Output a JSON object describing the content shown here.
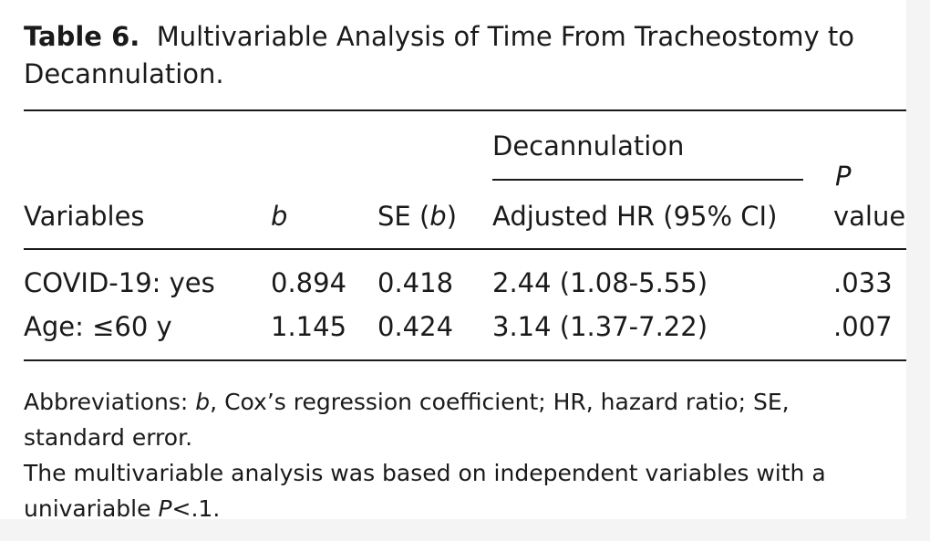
{
  "caption": {
    "label": "Table 6.",
    "title": "Multivariable Analysis of Time From Tracheostomy to Decannulation."
  },
  "table": {
    "headers": {
      "variables": "Variables",
      "b": "b",
      "se_prefix": "SE (",
      "se_var": "b",
      "se_suffix": ")",
      "spanner": "Decannulation",
      "adjusted_hr": "Adjusted HR (95% CI)",
      "p_letter": "P",
      "p_word": "value"
    },
    "rows": [
      {
        "variable": "COVID-19: yes",
        "b": "0.894",
        "se": "0.418",
        "hr": "2.44 (1.08-5.55)",
        "p": ".033"
      },
      {
        "variable": "Age: ≤60 y",
        "b": "1.145",
        "se": "0.424",
        "hr": "3.14 (1.37-7.22)",
        "p": ".007"
      }
    ]
  },
  "notes": {
    "abbr_prefix": "Abbreviations: ",
    "abbr_var": "b",
    "abbr_rest": ", Cox’s regression coefficient; HR, hazard ratio; SE, standard error.",
    "analysis_prefix": "The multivariable analysis was based on independent variables with a univariable ",
    "analysis_var": "P",
    "analysis_suffix": "<.1."
  }
}
